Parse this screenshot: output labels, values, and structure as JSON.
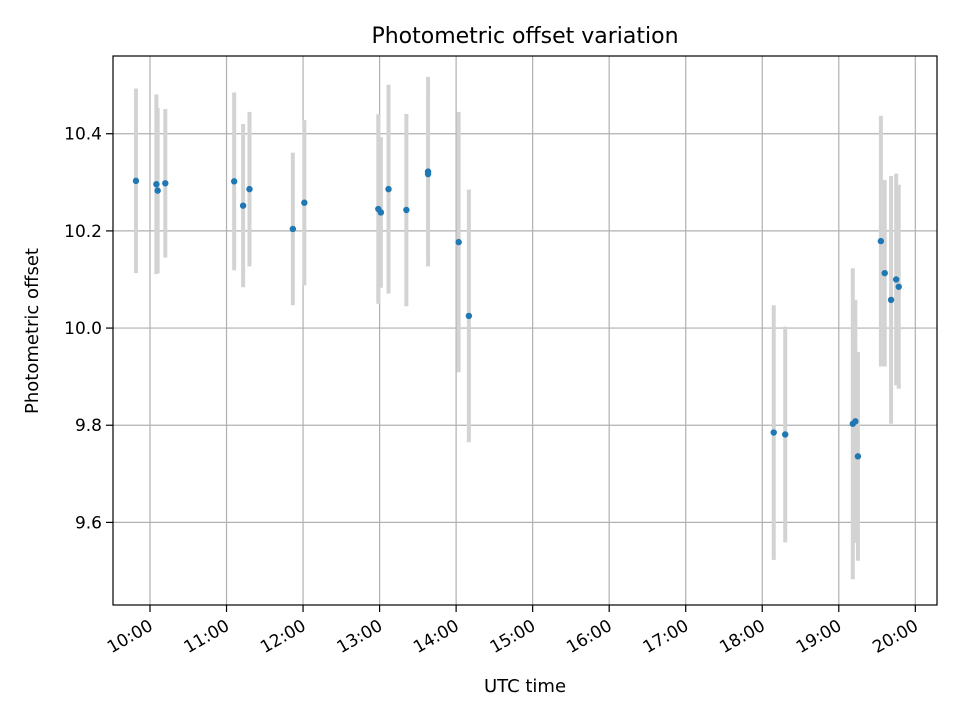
{
  "chart_data": {
    "type": "scatter",
    "title": "Photometric offset variation",
    "xlabel": "UTC time",
    "ylabel": "Photometric offset",
    "x_ticks": [
      "10:00",
      "11:00",
      "12:00",
      "13:00",
      "14:00",
      "15:00",
      "16:00",
      "17:00",
      "18:00",
      "19:00",
      "20:00"
    ],
    "x_tick_hours": [
      10,
      11,
      12,
      13,
      14,
      15,
      16,
      17,
      18,
      19,
      20
    ],
    "y_ticks": [
      "9.6",
      "9.8",
      "10.0",
      "10.2",
      "10.4"
    ],
    "y_tick_values": [
      9.6,
      9.8,
      10.0,
      10.2,
      10.4
    ],
    "xlim": [
      "09:31",
      "20:17"
    ],
    "ylim": [
      9.43,
      10.56
    ],
    "grid": true,
    "point_color": "#1f77b4",
    "errorbar_color": "#d3d3d3",
    "points": [
      {
        "time": "09:49",
        "y": 10.303,
        "err": 0.19
      },
      {
        "time": "10:05",
        "y": 10.296,
        "err": 0.185
      },
      {
        "time": "10:06",
        "y": 10.283,
        "err": 0.17
      },
      {
        "time": "10:12",
        "y": 10.298,
        "err": 0.153
      },
      {
        "time": "11:06",
        "y": 10.302,
        "err": 0.183
      },
      {
        "time": "11:13",
        "y": 10.252,
        "err": 0.168
      },
      {
        "time": "11:18",
        "y": 10.286,
        "err": 0.159
      },
      {
        "time": "11:52",
        "y": 10.204,
        "err": 0.157
      },
      {
        "time": "12:01",
        "y": 10.258,
        "err": 0.17
      },
      {
        "time": "12:59",
        "y": 10.245,
        "err": 0.195
      },
      {
        "time": "13:01",
        "y": 10.238,
        "err": 0.155
      },
      {
        "time": "13:07",
        "y": 10.286,
        "err": 0.215
      },
      {
        "time": "13:21",
        "y": 10.243,
        "err": 0.198
      },
      {
        "time": "13:38",
        "y": 10.322,
        "err": 0.195
      },
      {
        "time": "13:38",
        "y": 10.317,
        "err": 0.165
      },
      {
        "time": "14:02",
        "y": 10.177,
        "err": 0.268
      },
      {
        "time": "14:10",
        "y": 10.025,
        "err": 0.26
      },
      {
        "time": "18:09",
        "y": 9.785,
        "err": 0.262
      },
      {
        "time": "18:18",
        "y": 9.781,
        "err": 0.222
      },
      {
        "time": "19:11",
        "y": 9.803,
        "err": 0.32
      },
      {
        "time": "19:13",
        "y": 9.808,
        "err": 0.25
      },
      {
        "time": "19:15",
        "y": 9.736,
        "err": 0.215
      },
      {
        "time": "19:33",
        "y": 10.179,
        "err": 0.258
      },
      {
        "time": "19:36",
        "y": 10.113,
        "err": 0.192
      },
      {
        "time": "19:41",
        "y": 10.058,
        "err": 0.255
      },
      {
        "time": "19:45",
        "y": 10.1,
        "err": 0.218
      },
      {
        "time": "19:47",
        "y": 10.085,
        "err": 0.21
      }
    ]
  }
}
